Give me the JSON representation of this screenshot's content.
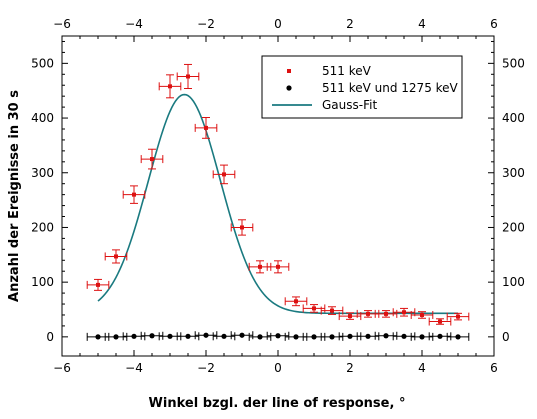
{
  "chart_data": {
    "type": "scatter",
    "xlabel": "Winkel bzgl. der line of response, °",
    "ylabel": "Anzahl der Ereignisse in 30 s",
    "xlim": [
      -6,
      6
    ],
    "ylim": [
      -35,
      550
    ],
    "xticks": [
      -6,
      -4,
      -2,
      0,
      2,
      4,
      6
    ],
    "yticks": [
      0,
      100,
      200,
      300,
      400,
      500
    ],
    "grid": false,
    "legend_position": "top-right",
    "colors": {
      "red": "#dd1111",
      "black": "#000000",
      "fit": "#1a7a80"
    },
    "legend": [
      {
        "label": "511 keV",
        "marker": "square",
        "color": "#dd1111"
      },
      {
        "label": "511 keV und 1275 keV",
        "marker": "circle",
        "color": "#000000"
      },
      {
        "label": "Gauss-Fit",
        "marker": "line",
        "color": "#1a7a80"
      }
    ],
    "series": [
      {
        "name": "511 keV",
        "x": [
          -5.0,
          -4.5,
          -4.0,
          -3.5,
          -3.0,
          -2.5,
          -2.0,
          -1.5,
          -1.0,
          -0.5,
          0.0,
          0.5,
          1.0,
          1.5,
          2.0,
          2.5,
          3.0,
          3.5,
          4.0,
          4.5,
          5.0
        ],
        "y": [
          95,
          147,
          260,
          325,
          458,
          476,
          382,
          297,
          200,
          128,
          128,
          65,
          52,
          48,
          38,
          42,
          42,
          45,
          40,
          28,
          37
        ],
        "yerr": [
          10,
          12,
          16,
          18,
          21,
          22,
          19,
          17,
          14,
          11,
          11,
          8,
          7,
          7,
          6,
          6,
          6,
          7,
          6,
          5,
          6
        ],
        "xerr": 0.3
      },
      {
        "name": "511 keV und 1275 keV",
        "x": [
          -5.0,
          -4.5,
          -4.0,
          -3.5,
          -3.0,
          -2.5,
          -2.0,
          -1.5,
          -1.0,
          -0.5,
          0.0,
          0.5,
          1.0,
          1.5,
          2.0,
          2.5,
          3.0,
          3.5,
          4.0,
          4.5,
          5.0
        ],
        "y": [
          0,
          0,
          1,
          2,
          1,
          1,
          3,
          1,
          3,
          0,
          2,
          0,
          0,
          0,
          1,
          1,
          2,
          1,
          0,
          1,
          0
        ],
        "xerr": 0.3
      },
      {
        "name": "Gauss-Fit",
        "type": "line",
        "x_range": [
          -5.0,
          5.0
        ],
        "amplitude": 400,
        "mu": -2.6,
        "sigma": 1.0,
        "offset": 43
      }
    ]
  }
}
